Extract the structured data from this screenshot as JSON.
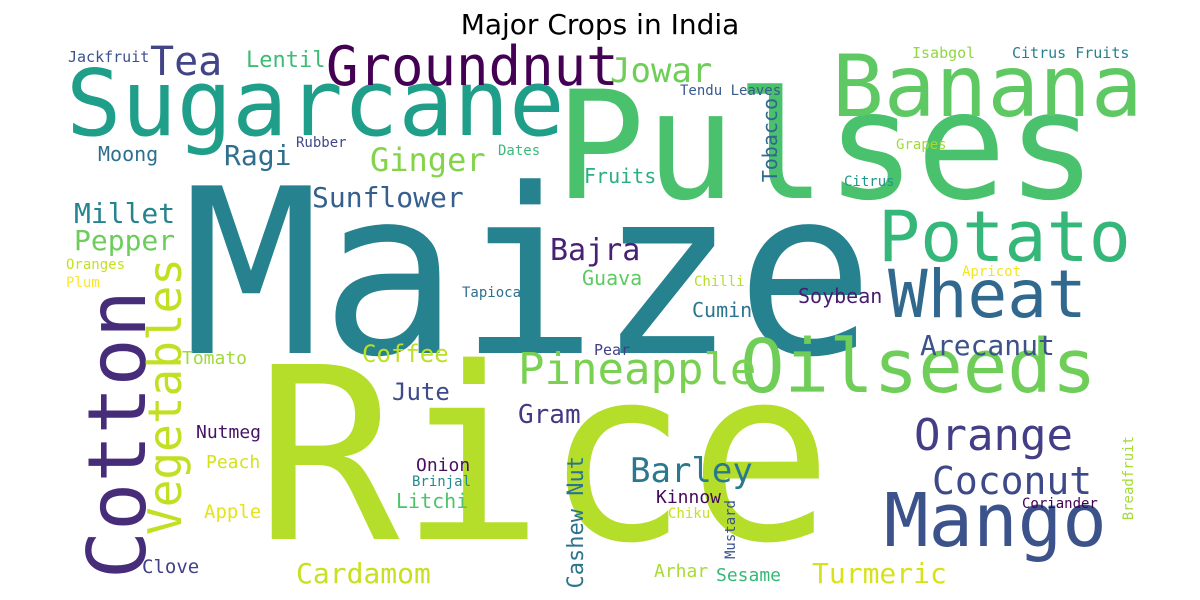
{
  "title": "Major Crops in India",
  "words": [
    {
      "text": "Maize",
      "color": "#26828e"
    },
    {
      "text": "Rice",
      "color": "#b5de2b"
    },
    {
      "text": "Pulses",
      "color": "#4ac16d"
    },
    {
      "text": "Sugarcane",
      "color": "#1f9e89"
    },
    {
      "text": "Banana",
      "color": "#5ec962"
    },
    {
      "text": "Cotton",
      "color": "#472c7a"
    },
    {
      "text": "Oilseeds",
      "color": "#6ece58"
    },
    {
      "text": "Mango",
      "color": "#3b528b"
    },
    {
      "text": "Potato",
      "color": "#35b779"
    },
    {
      "text": "Wheat",
      "color": "#31688e"
    },
    {
      "text": "Groundnut",
      "color": "#440154"
    },
    {
      "text": "Vegetables",
      "color": "#c2df23"
    },
    {
      "text": "Orange",
      "color": "#433e85"
    },
    {
      "text": "Pineapple",
      "color": "#7ad151"
    },
    {
      "text": "Coconut",
      "color": "#3e4989"
    },
    {
      "text": "Barley",
      "color": "#2a788e"
    },
    {
      "text": "Tea",
      "color": "#414487"
    },
    {
      "text": "Jowar",
      "color": "#6ece58"
    },
    {
      "text": "Arecanut",
      "color": "#3b528b"
    },
    {
      "text": "Ginger",
      "color": "#84d44b"
    },
    {
      "text": "Bajra",
      "color": "#482173"
    },
    {
      "text": "Sunflower",
      "color": "#355f8d"
    },
    {
      "text": "Millet",
      "color": "#25848e"
    },
    {
      "text": "Pepper",
      "color": "#6ccd5a"
    },
    {
      "text": "Ragi",
      "color": "#2e6e8e"
    },
    {
      "text": "Turmeric",
      "color": "#d8e219"
    },
    {
      "text": "Cardamom",
      "color": "#c8e020"
    },
    {
      "text": "Coffee",
      "color": "#bddf26"
    },
    {
      "text": "Gram",
      "color": "#443983"
    },
    {
      "text": "Soybean",
      "color": "#481d6f"
    },
    {
      "text": "Lentil",
      "color": "#3dbc74"
    },
    {
      "text": "Jute",
      "color": "#3e4a89"
    },
    {
      "text": "Cashew Nut",
      "color": "#2c738e"
    },
    {
      "text": "Tobacco",
      "color": "#31688e"
    },
    {
      "text": "Fruits",
      "color": "#2ab07f"
    },
    {
      "text": "Cumin",
      "color": "#2b758e"
    },
    {
      "text": "Guava",
      "color": "#5ec962"
    },
    {
      "text": "Moong",
      "color": "#2d708e"
    },
    {
      "text": "Nutmeg",
      "color": "#471164"
    },
    {
      "text": "Litchi",
      "color": "#4ec36b"
    },
    {
      "text": "Onion",
      "color": "#471063"
    },
    {
      "text": "Kinnow",
      "color": "#46085c"
    },
    {
      "text": "Tomato",
      "color": "#a0da39"
    },
    {
      "text": "Peach",
      "color": "#d5e21a"
    },
    {
      "text": "Apple",
      "color": "#e5e419"
    },
    {
      "text": "Clove",
      "color": "#424186"
    },
    {
      "text": "Arhar",
      "color": "#a8db34"
    },
    {
      "text": "Sesame",
      "color": "#37b878"
    },
    {
      "text": "Jackfruit",
      "color": "#3b528b"
    },
    {
      "text": "Isabgol",
      "color": "#90d743"
    },
    {
      "text": "Citrus Fruits",
      "color": "#26818e"
    },
    {
      "text": "Tendu Leaves",
      "color": "#38598c"
    },
    {
      "text": "Rubber",
      "color": "#3f4788"
    },
    {
      "text": "Dates",
      "color": "#3aba76"
    },
    {
      "text": "Grapes",
      "color": "#a2da37"
    },
    {
      "text": "Citrus",
      "color": "#1f978b"
    },
    {
      "text": "Oranges",
      "color": "#c5e021"
    },
    {
      "text": "Plum",
      "color": "#fde725"
    },
    {
      "text": "Apricot",
      "color": "#f4e61e"
    },
    {
      "text": "Tapioca",
      "color": "#2d708e"
    },
    {
      "text": "Chilli",
      "color": "#b5de2b"
    },
    {
      "text": "Pear",
      "color": "#433e85"
    },
    {
      "text": "Brinjal",
      "color": "#238a8d"
    },
    {
      "text": "Chiku",
      "color": "#c8e020"
    },
    {
      "text": "Mustard",
      "color": "#3b528b"
    },
    {
      "text": "Coriander",
      "color": "#440154"
    },
    {
      "text": "Breadfruit",
      "color": "#a5db36"
    }
  ]
}
